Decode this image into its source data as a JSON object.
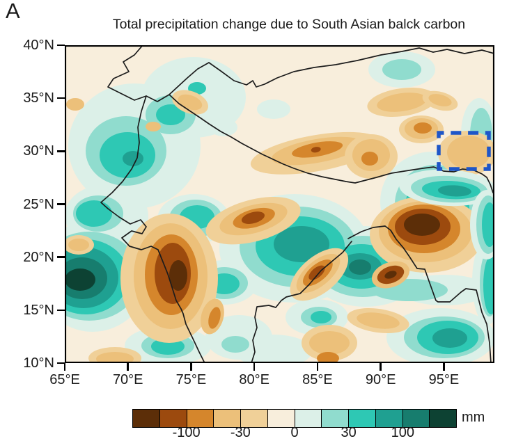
{
  "panel_label": "A",
  "title": "Total precipitation change due to South Asian balck carbon",
  "axes": {
    "x_ticks": [
      {
        "label": "65°E",
        "lon": 65
      },
      {
        "label": "70°E",
        "lon": 70
      },
      {
        "label": "75°E",
        "lon": 75
      },
      {
        "label": "80°E",
        "lon": 80
      },
      {
        "label": "85°E",
        "lon": 85
      },
      {
        "label": "90°E",
        "lon": 90
      },
      {
        "label": "95°E",
        "lon": 95
      }
    ],
    "y_ticks": [
      {
        "label": "40°N",
        "lat": 40
      },
      {
        "label": "35°N",
        "lat": 35
      },
      {
        "label": "30°N",
        "lat": 30
      },
      {
        "label": "25°N",
        "lat": 25
      },
      {
        "label": "20°N",
        "lat": 20
      },
      {
        "label": "15°N",
        "lat": 15
      },
      {
        "label": "10°N",
        "lat": 10
      }
    ],
    "lon_range": [
      65,
      99
    ],
    "lat_range": [
      10,
      40
    ]
  },
  "colorbar": {
    "unit": "mm",
    "tick_labels": [
      "-100",
      "-30",
      "0",
      "30",
      "100"
    ],
    "tick_boundary_indices": [
      2,
      4,
      6,
      8,
      10
    ],
    "levels_mm": [
      -150,
      -100,
      -50,
      -30,
      -10,
      0,
      10,
      30,
      50,
      100,
      150
    ],
    "colors": [
      "#5C2E08",
      "#9C4A0E",
      "#D5862C",
      "#ECC07A",
      "#F0D098",
      "#F8EEDC",
      "#DCF0E8",
      "#90DCCE",
      "#2EC8B4",
      "#1FA091",
      "#177D6E",
      "#0D4233"
    ]
  },
  "map": {
    "background_color": "#F8EEDC",
    "border_line_color": "#1c1c1c",
    "region_box": {
      "description": "dashed study-region box over southeastern Tibetan Plateau",
      "lon_min": 94.5,
      "lon_max": 98.5,
      "lat_min": 28.3,
      "lat_max": 31.7,
      "color": "#1E56C8"
    },
    "anomaly_centers_read_from_map": [
      {
        "sign": "increase",
        "approx_lon": 66.5,
        "approx_lat": 18,
        "peak_mm": ">150"
      },
      {
        "sign": "decrease",
        "approx_lon": 73.5,
        "approx_lat": 18,
        "peak_mm": "<-150"
      },
      {
        "sign": "decrease",
        "approx_lon": 93,
        "approx_lat": 22.5,
        "peak_mm": "<-150"
      },
      {
        "sign": "increase",
        "approx_lon": 83.5,
        "approx_lat": 21.5,
        "peak_mm": "~100"
      },
      {
        "sign": "increase",
        "approx_lon": 88.5,
        "approx_lat": 19.5,
        "peak_mm": "~100"
      },
      {
        "sign": "decrease",
        "approx_lon": 80,
        "approx_lat": 28,
        "peak_mm": "~-50"
      }
    ]
  }
}
